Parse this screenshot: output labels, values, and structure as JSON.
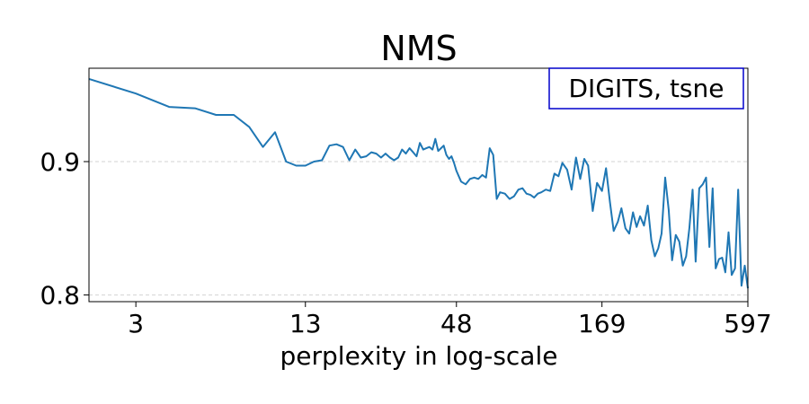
{
  "chart_data": {
    "type": "line",
    "title": "NMS",
    "xlabel": "perplexity in log-scale",
    "ylabel": "",
    "x_scale": "log",
    "xlim": [
      2,
      597
    ],
    "ylim": [
      0.795,
      0.97
    ],
    "x_ticks": [
      3,
      13,
      48,
      169,
      597
    ],
    "x_tick_labels": [
      "3",
      "13",
      "48",
      "169",
      "597"
    ],
    "y_ticks": [
      0.8,
      0.9
    ],
    "y_tick_labels": [
      "0.8",
      "0.9"
    ],
    "grid": "horizontal dashed",
    "legend": {
      "text": "DIGITS, tsne",
      "position": "top-right"
    },
    "colors": {
      "line": "#1f77b4",
      "legend_border": "#0000cc",
      "grid": "#d3d3d3"
    },
    "series": [
      {
        "x": [
          2,
          3,
          4,
          5,
          6,
          7,
          8,
          9,
          10,
          11,
          12,
          13,
          14,
          15,
          16,
          17,
          18,
          19,
          20,
          21,
          22,
          23,
          24,
          25,
          26,
          27,
          28,
          29,
          30,
          31,
          32,
          33,
          34,
          35,
          36,
          37,
          38,
          39,
          40,
          41,
          42,
          43,
          44,
          45,
          46,
          47,
          48,
          50,
          52,
          54,
          56,
          58,
          60,
          62,
          64,
          66,
          68,
          70,
          73,
          76,
          79,
          82,
          85,
          88,
          91,
          94,
          97,
          100,
          104,
          108,
          112,
          116,
          120,
          125,
          130,
          135,
          140,
          145,
          150,
          156,
          162,
          169,
          175,
          181,
          187,
          194,
          200,
          207,
          214,
          221,
          228,
          235,
          243,
          251,
          259,
          267,
          275,
          283,
          292,
          301,
          310,
          320,
          330,
          340,
          350,
          360,
          370,
          380,
          392,
          404,
          416,
          428,
          440,
          452,
          465,
          478,
          491,
          505,
          519,
          534,
          549,
          565,
          581,
          597
        ],
        "y": [
          0.962,
          0.951,
          0.941,
          0.94,
          0.935,
          0.935,
          0.926,
          0.911,
          0.922,
          0.9,
          0.897,
          0.897,
          0.9,
          0.901,
          0.912,
          0.913,
          0.911,
          0.901,
          0.909,
          0.903,
          0.904,
          0.907,
          0.906,
          0.903,
          0.906,
          0.903,
          0.901,
          0.903,
          0.909,
          0.906,
          0.91,
          0.907,
          0.904,
          0.914,
          0.909,
          0.91,
          0.911,
          0.909,
          0.917,
          0.908,
          0.91,
          0.912,
          0.905,
          0.902,
          0.904,
          0.899,
          0.893,
          0.885,
          0.883,
          0.887,
          0.888,
          0.887,
          0.89,
          0.888,
          0.91,
          0.905,
          0.872,
          0.877,
          0.876,
          0.872,
          0.874,
          0.879,
          0.88,
          0.876,
          0.875,
          0.873,
          0.876,
          0.877,
          0.879,
          0.878,
          0.891,
          0.889,
          0.899,
          0.894,
          0.879,
          0.903,
          0.887,
          0.902,
          0.897,
          0.863,
          0.884,
          0.878,
          0.895,
          0.87,
          0.848,
          0.855,
          0.865,
          0.85,
          0.846,
          0.862,
          0.851,
          0.859,
          0.852,
          0.867,
          0.841,
          0.829,
          0.835,
          0.846,
          0.888,
          0.864,
          0.826,
          0.845,
          0.84,
          0.822,
          0.829,
          0.85,
          0.879,
          0.825,
          0.88,
          0.883,
          0.888,
          0.836,
          0.88,
          0.82,
          0.827,
          0.828,
          0.817,
          0.847,
          0.815,
          0.82,
          0.879,
          0.807,
          0.822,
          0.805
        ]
      }
    ]
  }
}
